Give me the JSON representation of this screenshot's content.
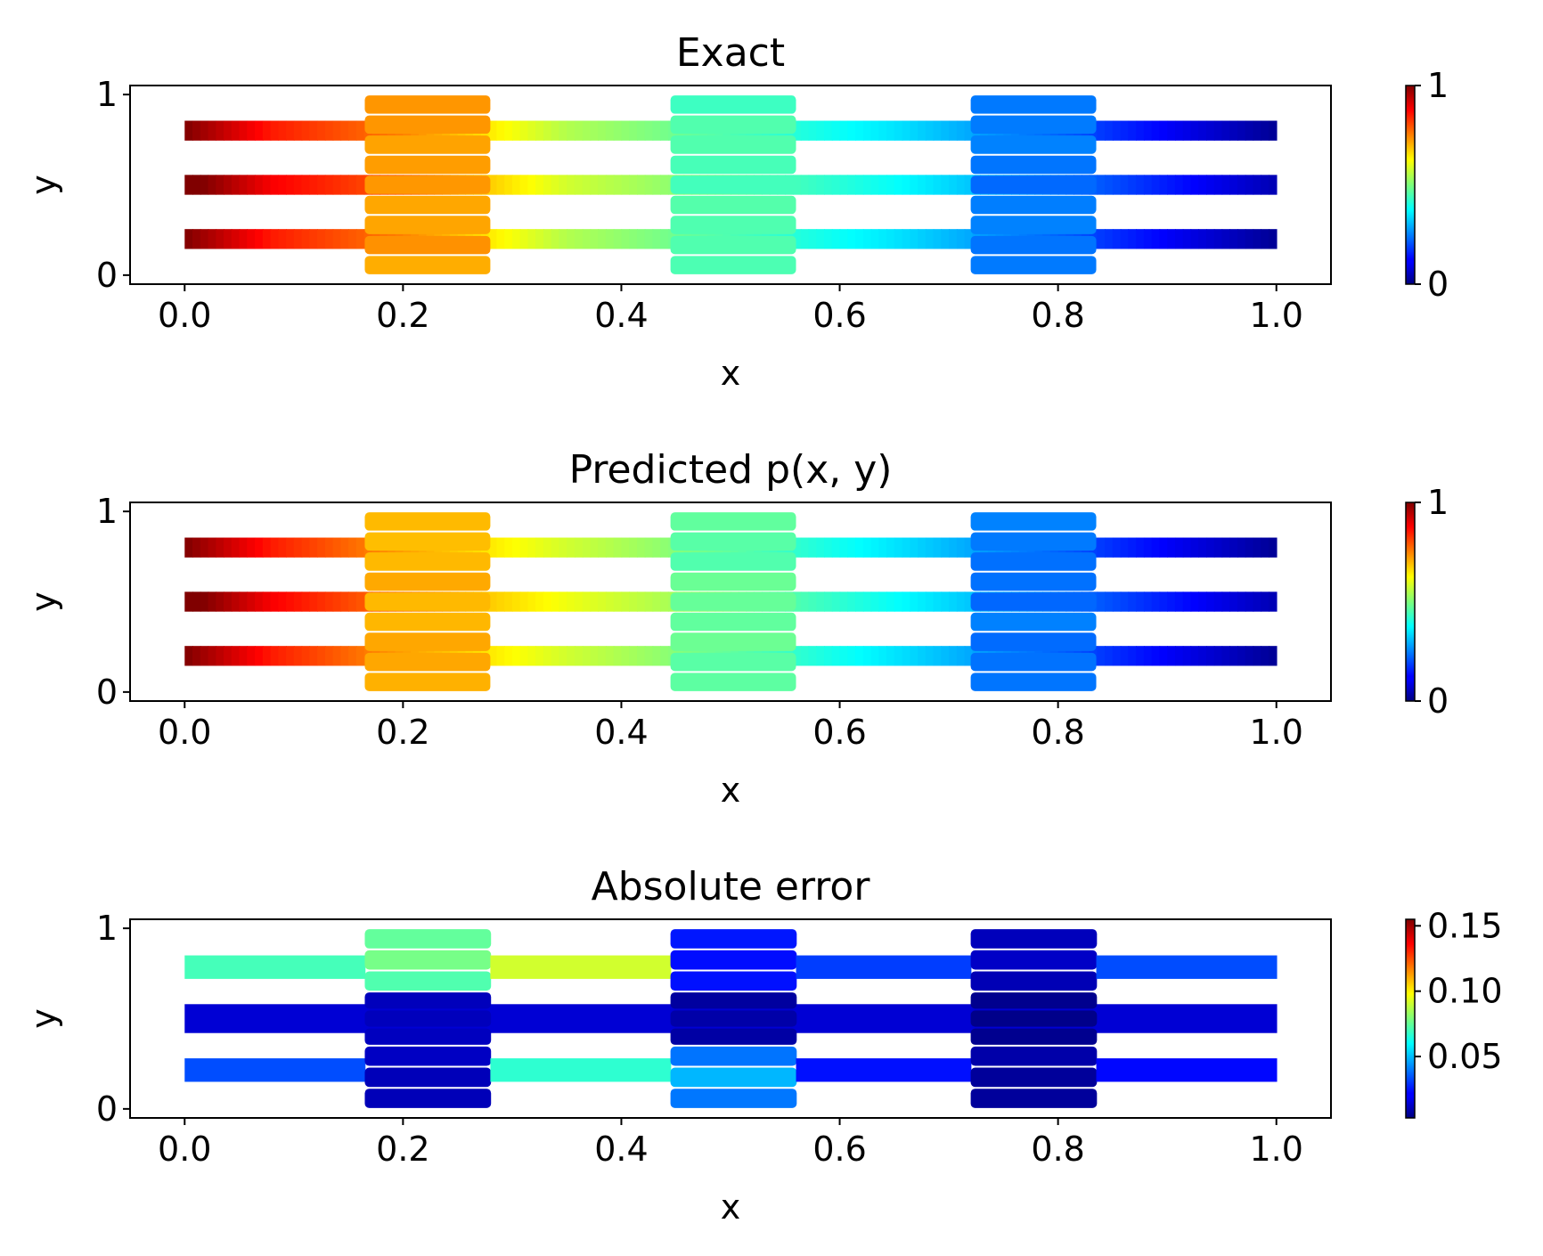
{
  "figure": {
    "type": "scatter-heatmap",
    "layout": "3 stacked panels with colorbars"
  },
  "chart_data": [
    {
      "type": "scatter",
      "title": "Exact",
      "xlabel": "x",
      "ylabel": "y",
      "xlim": [
        -0.05,
        1.05
      ],
      "ylim": [
        -0.05,
        1.05
      ],
      "xticks": [
        "0.0",
        "0.2",
        "0.4",
        "0.6",
        "0.8",
        "1.0"
      ],
      "yticks": [
        "0",
        "1"
      ],
      "colormap": "jet",
      "color_range": [
        0,
        1
      ],
      "colorbar_ticks": [
        "0",
        "1"
      ],
      "channels_y": [
        0.2,
        0.5,
        0.8
      ],
      "chambers": [
        {
          "x": [
            0.165,
            0.28
          ],
          "y": [
            0,
            1
          ]
        },
        {
          "x": [
            0.445,
            0.56
          ],
          "y": [
            0,
            1
          ]
        },
        {
          "x": [
            0.72,
            0.835
          ],
          "y": [
            0,
            1
          ]
        }
      ],
      "profile_x": [
        0,
        0.08,
        0.2,
        0.35,
        0.5,
        0.65,
        0.8,
        0.9,
        1.0
      ],
      "profile_values": [
        1.0,
        0.85,
        0.75,
        0.55,
        0.45,
        0.35,
        0.22,
        0.12,
        0.02
      ]
    },
    {
      "type": "scatter",
      "title": "Predicted p(x, y)",
      "xlabel": "x",
      "ylabel": "y",
      "xlim": [
        -0.05,
        1.05
      ],
      "ylim": [
        -0.05,
        1.05
      ],
      "xticks": [
        "0.0",
        "0.2",
        "0.4",
        "0.6",
        "0.8",
        "1.0"
      ],
      "yticks": [
        "0",
        "1"
      ],
      "colormap": "jet",
      "color_range": [
        0,
        1
      ],
      "colorbar_ticks": [
        "0",
        "1"
      ],
      "channels_y": [
        0.2,
        0.5,
        0.8
      ],
      "chambers": [
        {
          "x": [
            0.165,
            0.28
          ],
          "y": [
            0,
            1
          ]
        },
        {
          "x": [
            0.445,
            0.56
          ],
          "y": [
            0,
            1
          ]
        },
        {
          "x": [
            0.72,
            0.835
          ],
          "y": [
            0,
            1
          ]
        }
      ],
      "profile_x": [
        0,
        0.08,
        0.2,
        0.35,
        0.5,
        0.65,
        0.8,
        0.9,
        1.0
      ],
      "profile_values": [
        1.0,
        0.85,
        0.72,
        0.58,
        0.47,
        0.35,
        0.22,
        0.12,
        0.02
      ]
    },
    {
      "type": "scatter",
      "title": "Absolute error",
      "xlabel": "x",
      "ylabel": "y",
      "xlim": [
        -0.05,
        1.05
      ],
      "ylim": [
        -0.05,
        1.05
      ],
      "xticks": [
        "0.0",
        "0.2",
        "0.4",
        "0.6",
        "0.8",
        "1.0"
      ],
      "yticks": [
        "0",
        "1"
      ],
      "colormap": "jet",
      "color_range": [
        0.003,
        0.155
      ],
      "colorbar_ticks": [
        "0.05",
        "0.10",
        "0.15"
      ],
      "channels_y": [
        0.2,
        0.5,
        0.8
      ],
      "chambers": [
        {
          "x": [
            0.165,
            0.28
          ],
          "y": [
            0,
            1
          ]
        },
        {
          "x": [
            0.445,
            0.56
          ],
          "y": [
            0,
            1
          ]
        },
        {
          "x": [
            0.72,
            0.835
          ],
          "y": [
            0,
            1
          ]
        }
      ],
      "error_regions": [
        {
          "x": [
            0.0,
            0.165
          ],
          "y": [
            0.72,
            0.85
          ],
          "value": 0.07
        },
        {
          "x": [
            0.165,
            0.28
          ],
          "y": [
            0.65,
            1.0
          ],
          "value": 0.08
        },
        {
          "x": [
            0.28,
            0.445
          ],
          "y": [
            0.72,
            0.85
          ],
          "value": 0.095
        },
        {
          "x": [
            0.445,
            0.56
          ],
          "y": [
            0.65,
            1.0
          ],
          "value": 0.025
        },
        {
          "x": [
            0.56,
            0.72
          ],
          "y": [
            0.72,
            0.85
          ],
          "value": 0.03
        },
        {
          "x": [
            0.72,
            0.835
          ],
          "y": [
            0.65,
            1.0
          ],
          "value": 0.012
        },
        {
          "x": [
            0.835,
            1.0
          ],
          "y": [
            0.72,
            0.85
          ],
          "value": 0.03
        },
        {
          "x": [
            0.0,
            1.0
          ],
          "y": [
            0.42,
            0.58
          ],
          "value": 0.015
        },
        {
          "x": [
            0.165,
            0.28
          ],
          "y": [
            0.35,
            0.65
          ],
          "value": 0.012
        },
        {
          "x": [
            0.445,
            0.56
          ],
          "y": [
            0.35,
            0.65
          ],
          "value": 0.008
        },
        {
          "x": [
            0.72,
            0.835
          ],
          "y": [
            0.35,
            0.65
          ],
          "value": 0.005
        },
        {
          "x": [
            0.0,
            0.165
          ],
          "y": [
            0.15,
            0.28
          ],
          "value": 0.035
        },
        {
          "x": [
            0.165,
            0.28
          ],
          "y": [
            0.0,
            0.35
          ],
          "value": 0.012
        },
        {
          "x": [
            0.28,
            0.445
          ],
          "y": [
            0.15,
            0.28
          ],
          "value": 0.06
        },
        {
          "x": [
            0.445,
            0.56
          ],
          "y": [
            0.0,
            0.35
          ],
          "value": 0.045
        },
        {
          "x": [
            0.56,
            0.72
          ],
          "y": [
            0.15,
            0.28
          ],
          "value": 0.025
        },
        {
          "x": [
            0.72,
            0.835
          ],
          "y": [
            0.0,
            0.35
          ],
          "value": 0.008
        },
        {
          "x": [
            0.835,
            1.0
          ],
          "y": [
            0.15,
            0.28
          ],
          "value": 0.025
        }
      ]
    }
  ]
}
